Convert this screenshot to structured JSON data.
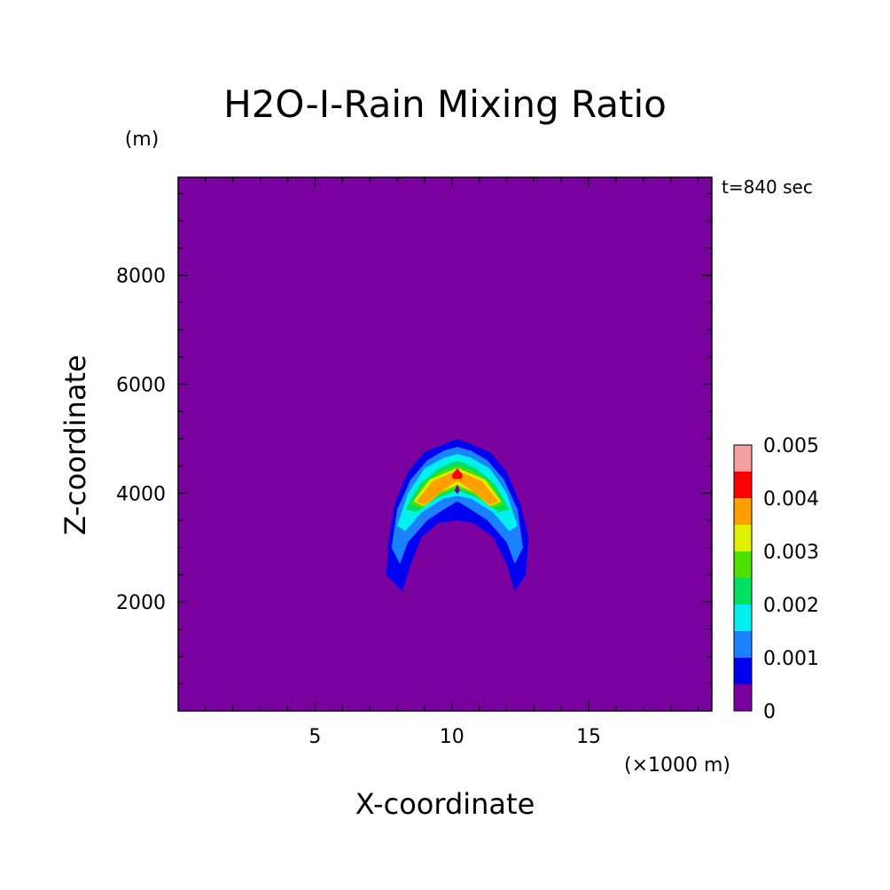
{
  "chart_data": {
    "type": "heatmap",
    "title": "H2O-I-Rain Mixing Ratio",
    "time_label": "t=840 sec",
    "xlabel": "X-coordinate",
    "ylabel": "Z-coordinate",
    "x_unit": "(×1000 m)",
    "y_unit": "(m)",
    "xlim": [
      0,
      19.5
    ],
    "ylim": [
      0,
      9800
    ],
    "x_ticks": [
      5,
      10,
      15
    ],
    "x_tick_labels": [
      "5",
      "10",
      "15"
    ],
    "y_ticks": [
      2000,
      4000,
      6000,
      8000
    ],
    "y_tick_labels": [
      "2000",
      "4000",
      "6000",
      "8000"
    ],
    "grid": false,
    "background_value": 0,
    "colorbar": {
      "levels": [
        0,
        0.0005,
        0.001,
        0.0015,
        0.002,
        0.0025,
        0.003,
        0.0035,
        0.004,
        0.0045,
        0.005
      ],
      "colors": [
        "#7b00a0",
        "#0000f0",
        "#1a82ff",
        "#00f0f0",
        "#00e060",
        "#50e000",
        "#e0f000",
        "#ffa000",
        "#ff0000",
        "#f7a0a0"
      ],
      "tick_labels": [
        "0",
        "0.001",
        "0.002",
        "0.003",
        "0.004",
        "0.005"
      ]
    },
    "contours": [
      {
        "level": 0.0005,
        "points": [
          [
            7.6,
            2500
          ],
          [
            7.7,
            3200
          ],
          [
            7.9,
            3800
          ],
          [
            8.4,
            4400
          ],
          [
            9.0,
            4750
          ],
          [
            9.7,
            4900
          ],
          [
            10.2,
            5000
          ],
          [
            10.7,
            4900
          ],
          [
            11.4,
            4750
          ],
          [
            12.0,
            4400
          ],
          [
            12.5,
            3800
          ],
          [
            12.8,
            3200
          ],
          [
            12.7,
            2500
          ],
          [
            12.3,
            2200
          ],
          [
            12.0,
            2700
          ],
          [
            11.5,
            3200
          ],
          [
            10.8,
            3450
          ],
          [
            10.2,
            3500
          ],
          [
            9.5,
            3450
          ],
          [
            8.9,
            3200
          ],
          [
            8.5,
            2700
          ],
          [
            8.2,
            2200
          ]
        ]
      },
      {
        "level": 0.001,
        "points": [
          [
            7.8,
            3000
          ],
          [
            8.0,
            3700
          ],
          [
            8.5,
            4250
          ],
          [
            9.1,
            4600
          ],
          [
            9.7,
            4780
          ],
          [
            10.2,
            4850
          ],
          [
            10.7,
            4780
          ],
          [
            11.3,
            4600
          ],
          [
            11.9,
            4250
          ],
          [
            12.4,
            3700
          ],
          [
            12.6,
            3000
          ],
          [
            12.3,
            2700
          ],
          [
            12.0,
            3100
          ],
          [
            11.3,
            3500
          ],
          [
            10.7,
            3700
          ],
          [
            10.2,
            3850
          ],
          [
            9.7,
            3700
          ],
          [
            9.1,
            3500
          ],
          [
            8.4,
            3100
          ],
          [
            8.1,
            2700
          ]
        ]
      },
      {
        "level": 0.0015,
        "points": [
          [
            8.0,
            3400
          ],
          [
            8.4,
            4000
          ],
          [
            9.0,
            4450
          ],
          [
            9.7,
            4650
          ],
          [
            10.2,
            4720
          ],
          [
            10.7,
            4650
          ],
          [
            11.4,
            4450
          ],
          [
            12.0,
            4000
          ],
          [
            12.4,
            3400
          ],
          [
            12.1,
            3300
          ],
          [
            11.5,
            3650
          ],
          [
            10.7,
            3900
          ],
          [
            10.2,
            3950
          ],
          [
            9.7,
            3900
          ],
          [
            8.9,
            3650
          ],
          [
            8.3,
            3300
          ]
        ]
      },
      {
        "level": 0.002,
        "points": [
          [
            8.3,
            3700
          ],
          [
            8.8,
            4150
          ],
          [
            9.5,
            4450
          ],
          [
            10.2,
            4600
          ],
          [
            10.9,
            4450
          ],
          [
            11.6,
            4150
          ],
          [
            12.1,
            3700
          ],
          [
            11.7,
            3650
          ],
          [
            11.0,
            3900
          ],
          [
            10.2,
            4050
          ],
          [
            9.4,
            3900
          ],
          [
            8.7,
            3650
          ]
        ]
      },
      {
        "level": 0.0025,
        "points": [
          [
            8.5,
            3800
          ],
          [
            9.0,
            4200
          ],
          [
            9.6,
            4400
          ],
          [
            10.2,
            4500
          ],
          [
            10.8,
            4400
          ],
          [
            11.4,
            4200
          ],
          [
            11.9,
            3800
          ],
          [
            11.5,
            3720
          ],
          [
            10.9,
            3950
          ],
          [
            10.2,
            4100
          ],
          [
            9.5,
            3950
          ],
          [
            8.9,
            3720
          ]
        ]
      },
      {
        "level": 0.003,
        "points": [
          [
            8.6,
            3850
          ],
          [
            9.2,
            4250
          ],
          [
            10.2,
            4460
          ],
          [
            11.2,
            4250
          ],
          [
            11.8,
            3850
          ],
          [
            11.4,
            3760
          ],
          [
            10.8,
            4020
          ],
          [
            10.2,
            4150
          ],
          [
            9.6,
            4020
          ],
          [
            9.0,
            3760
          ]
        ]
      },
      {
        "level": 0.0035,
        "points": [
          [
            8.7,
            3850
          ],
          [
            9.3,
            4220
          ],
          [
            10.2,
            4420
          ],
          [
            11.1,
            4220
          ],
          [
            11.7,
            3850
          ],
          [
            11.4,
            3780
          ],
          [
            10.7,
            4060
          ],
          [
            10.2,
            4220
          ],
          [
            9.7,
            4060
          ],
          [
            9.0,
            3780
          ]
        ]
      },
      {
        "level": 0.004,
        "points": [
          [
            10.0,
            4330
          ],
          [
            10.2,
            4460
          ],
          [
            10.4,
            4330
          ],
          [
            10.35,
            4260
          ],
          [
            10.05,
            4260
          ]
        ]
      },
      {
        "level": 0.0001,
        "points": [
          [
            10.1,
            4050
          ],
          [
            10.2,
            4160
          ],
          [
            10.3,
            4050
          ],
          [
            10.2,
            3980
          ]
        ]
      }
    ]
  }
}
